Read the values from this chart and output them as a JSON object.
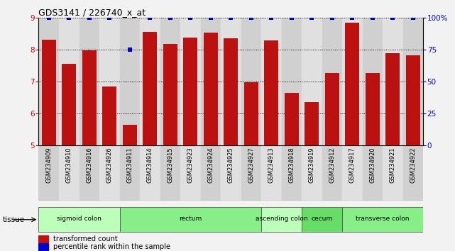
{
  "title": "GDS3141 / 226740_x_at",
  "samples": [
    "GSM234909",
    "GSM234910",
    "GSM234916",
    "GSM234926",
    "GSM234911",
    "GSM234914",
    "GSM234915",
    "GSM234923",
    "GSM234924",
    "GSM234925",
    "GSM234927",
    "GSM234913",
    "GSM234918",
    "GSM234919",
    "GSM234912",
    "GSM234917",
    "GSM234920",
    "GSM234921",
    "GSM234922"
  ],
  "bar_values": [
    8.3,
    7.55,
    7.97,
    6.85,
    5.65,
    8.55,
    8.18,
    8.38,
    8.52,
    8.35,
    6.98,
    8.28,
    6.65,
    6.35,
    7.27,
    8.85,
    7.27,
    7.88,
    7.82
  ],
  "percentile_values": [
    100,
    100,
    100,
    100,
    75,
    100,
    100,
    100,
    100,
    100,
    100,
    100,
    100,
    100,
    100,
    100,
    100,
    100,
    100
  ],
  "ylim": [
    5,
    9
  ],
  "y2lim": [
    0,
    100
  ],
  "yticks": [
    5,
    6,
    7,
    8,
    9
  ],
  "y2ticks": [
    0,
    25,
    50,
    75,
    100
  ],
  "tissue_groups": [
    {
      "label": "sigmoid colon",
      "start": 0,
      "end": 4,
      "color": "#bbffbb"
    },
    {
      "label": "rectum",
      "start": 4,
      "end": 11,
      "color": "#88ee88"
    },
    {
      "label": "ascending colon",
      "start": 11,
      "end": 13,
      "color": "#bbffbb"
    },
    {
      "label": "cecum",
      "start": 13,
      "end": 15,
      "color": "#66dd66"
    },
    {
      "label": "transverse colon",
      "start": 15,
      "end": 19,
      "color": "#88ee88"
    }
  ],
  "bar_color": "#bb1111",
  "dot_color": "#0000cc",
  "bg_color": "#f2f2f2",
  "plot_bg": "#ffffff",
  "title_color": "#000000",
  "ylabel_color": "#cc0000",
  "y2label_color": "#0000cc",
  "col_colors": [
    "#d0d0d0",
    "#e0e0e0"
  ]
}
